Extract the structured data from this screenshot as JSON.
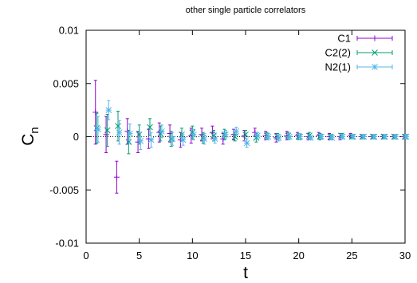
{
  "chart_data": {
    "type": "scatter",
    "title": "other single particle correlators",
    "xlabel": "t",
    "ylabel_main": "C",
    "ylabel_sub": "n",
    "xlim": [
      0,
      30
    ],
    "ylim": [
      -0.01,
      0.01
    ],
    "xticks": [
      0,
      5,
      10,
      15,
      20,
      25,
      30
    ],
    "xtick_labels": [
      "0",
      "5",
      "10",
      "15",
      "20",
      "25",
      "30"
    ],
    "yticks": [
      -0.01,
      -0.005,
      0,
      0.005,
      0.01
    ],
    "ytick_labels": [
      "-0.01",
      "-0.005",
      "0",
      "0.005",
      "0.01"
    ],
    "grid": false,
    "zero_line": true,
    "legend_position": "top-right",
    "series": [
      {
        "name": "C1",
        "color": "#9400d3",
        "marker": "plus",
        "x": [
          1,
          2,
          3,
          4,
          5,
          6,
          7,
          8,
          9,
          10,
          11,
          12,
          13,
          14,
          15,
          16,
          17,
          18,
          19,
          20,
          21,
          22,
          23,
          24,
          25,
          26,
          27,
          28,
          29,
          30
        ],
        "y": [
          0.0023,
          0.0002,
          -0.0038,
          0.0005,
          -0.0005,
          -0.0002,
          0.0004,
          0.0003,
          -0.0003,
          0.0001,
          0.0002,
          0.0004,
          -0.0002,
          0.0002,
          0.0001,
          0.0004,
          0.0001,
          -0.0001,
          0.0001,
          0.0001,
          0.0,
          0.0001,
          0.0,
          0.0,
          0.0001,
          0.0,
          0.0,
          0.0,
          0.0,
          0.0
        ],
        "err": [
          0.003,
          0.0017,
          0.0015,
          0.0012,
          0.001,
          0.0009,
          0.0009,
          0.0008,
          0.0007,
          0.0007,
          0.0006,
          0.0006,
          0.0005,
          0.0005,
          0.0005,
          0.0004,
          0.0004,
          0.0004,
          0.0004,
          0.0003,
          0.0003,
          0.0003,
          0.0003,
          0.0003,
          0.0002,
          0.0002,
          0.0002,
          0.0002,
          0.0002,
          0.0002
        ]
      },
      {
        "name": "C2(2)",
        "color": "#009e73",
        "marker": "cross",
        "x": [
          1,
          2,
          3,
          4,
          5,
          6,
          7,
          8,
          9,
          10,
          11,
          12,
          13,
          14,
          15,
          16,
          17,
          18,
          19,
          20,
          21,
          22,
          23,
          24,
          25,
          26,
          27,
          28,
          29,
          30
        ],
        "y": [
          0.0008,
          0.0006,
          0.001,
          -0.0005,
          0.0002,
          0.0009,
          0.0003,
          -0.0002,
          0.0002,
          0.0004,
          -0.0001,
          0.0001,
          0.0002,
          0.0,
          0.0002,
          -0.0001,
          0.0001,
          0.0,
          0.0001,
          0.0,
          0.0001,
          0.0,
          0.0,
          0.0001,
          0.0,
          0.0,
          0.0,
          0.0,
          0.0,
          0.0
        ],
        "err": [
          0.0014,
          0.0015,
          0.0014,
          0.0011,
          0.0009,
          0.0008,
          0.0007,
          0.0007,
          0.0006,
          0.0006,
          0.0005,
          0.0005,
          0.0005,
          0.0004,
          0.0004,
          0.0004,
          0.0003,
          0.0003,
          0.0003,
          0.0003,
          0.0003,
          0.0003,
          0.0002,
          0.0002,
          0.0002,
          0.0002,
          0.0002,
          0.0002,
          0.0002,
          0.0002
        ]
      },
      {
        "name": "N2(1)",
        "color": "#56b4e9",
        "marker": "star",
        "x": [
          1,
          2,
          3,
          4,
          5,
          6,
          7,
          8,
          9,
          10,
          11,
          12,
          13,
          14,
          15,
          16,
          17,
          18,
          19,
          20,
          21,
          22,
          23,
          24,
          25,
          26,
          27,
          28,
          29,
          30
        ],
        "y": [
          0.0007,
          0.0025,
          0.0004,
          0.0003,
          -0.0004,
          -0.0003,
          0.0005,
          -0.0002,
          -0.0003,
          0.0002,
          -0.0002,
          -0.0002,
          0.0002,
          0.0005,
          -0.0006,
          0.0001,
          0.0,
          -0.0001,
          0.0,
          0.0,
          -0.0001,
          0.0,
          -0.0001,
          0.0,
          0.0,
          0.0,
          0.0,
          0.0,
          0.0,
          0.0
        ],
        "err": [
          0.0012,
          0.0009,
          0.0011,
          0.0009,
          0.0008,
          0.0007,
          0.0006,
          0.0006,
          0.0005,
          0.0005,
          0.0005,
          0.0004,
          0.0004,
          0.0004,
          0.0004,
          0.0003,
          0.0003,
          0.0003,
          0.0003,
          0.0003,
          0.0002,
          0.0002,
          0.0002,
          0.0002,
          0.0002,
          0.0002,
          0.0002,
          0.0002,
          0.0002,
          0.0002
        ]
      }
    ]
  }
}
